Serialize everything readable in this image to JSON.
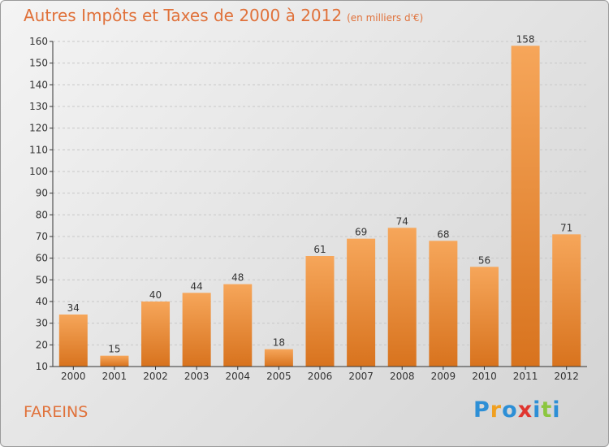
{
  "title": "Autres Impôts et Taxes de 2000 à 2012",
  "subtitle": "(en milliers d'€)",
  "commune": "FAREINS",
  "logo": {
    "text": "Proxiti",
    "letters": [
      {
        "ch": "P",
        "color": "#2d8fd6"
      },
      {
        "ch": "r",
        "color": "#f0a020"
      },
      {
        "ch": "o",
        "color": "#2d8fd6"
      },
      {
        "ch": "x",
        "color": "#e0352f"
      },
      {
        "ch": "i",
        "color": "#2d8fd6"
      },
      {
        "ch": "t",
        "color": "#8cc63f"
      },
      {
        "ch": "i",
        "color": "#2d8fd6"
      }
    ]
  },
  "colors": {
    "title": "#e0713a",
    "bar_top": "#f6a65a",
    "bar_bottom": "#d8731e",
    "axis": "#333333",
    "gridline": "#c8c8c8"
  },
  "chart_data": {
    "type": "bar",
    "categories": [
      "2000",
      "2001",
      "2002",
      "2003",
      "2004",
      "2005",
      "2006",
      "2007",
      "2008",
      "2009",
      "2010",
      "2011",
      "2012"
    ],
    "values": [
      34,
      15,
      40,
      44,
      48,
      18,
      61,
      69,
      74,
      68,
      56,
      158,
      71
    ],
    "data_labels": [
      "34",
      "15",
      "40",
      "44",
      "48",
      "18",
      "61",
      "69",
      "74",
      "68",
      "56",
      "158",
      "71"
    ],
    "y_ticks": [
      10,
      20,
      30,
      40,
      50,
      60,
      70,
      80,
      90,
      100,
      110,
      120,
      130,
      140,
      150,
      160
    ],
    "ylim": [
      10,
      160
    ],
    "grid": "horizontal dashed",
    "legend": "none"
  }
}
